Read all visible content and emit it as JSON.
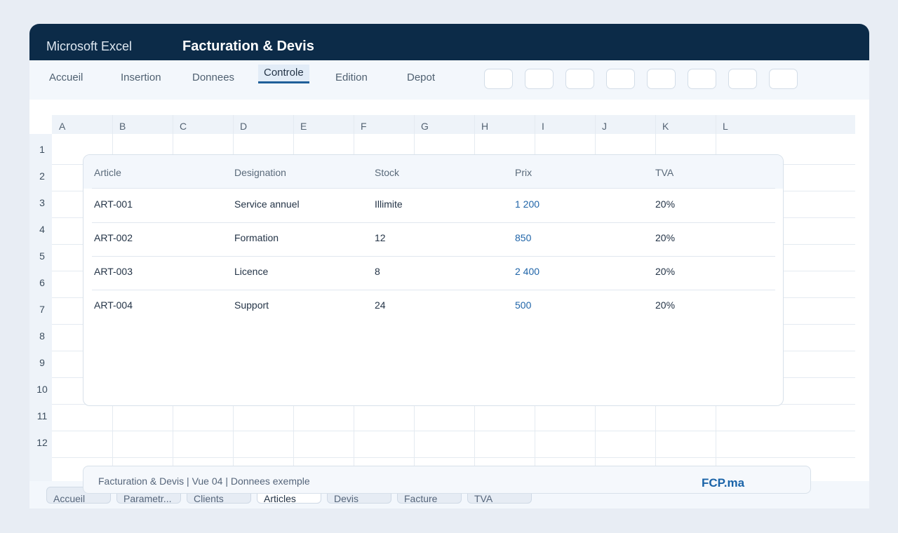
{
  "app": {
    "name": "Microsoft Excel",
    "document_title": "Facturation & Devis"
  },
  "ribbon": {
    "tabs": [
      {
        "label": "Accueil"
      },
      {
        "label": "Insertion"
      },
      {
        "label": "Donnees"
      },
      {
        "label": "Controle",
        "active": true
      },
      {
        "label": "Edition"
      },
      {
        "label": "Depot"
      }
    ],
    "button_count": 8
  },
  "grid": {
    "columns": [
      "A",
      "B",
      "C",
      "D",
      "E",
      "F",
      "G",
      "H",
      "I",
      "J",
      "K",
      "L"
    ],
    "rows": [
      "1",
      "2",
      "3",
      "4",
      "5",
      "6",
      "7",
      "8",
      "9",
      "10",
      "11",
      "12"
    ]
  },
  "table": {
    "headers": [
      "Article",
      "Designation",
      "Stock",
      "Prix",
      "TVA"
    ],
    "rows": [
      {
        "article": "ART-001",
        "designation": "Service annuel",
        "stock": "Illimite",
        "prix": "1 200",
        "tva": "20%"
      },
      {
        "article": "ART-002",
        "designation": "Formation",
        "stock": "12",
        "prix": "850",
        "tva": "20%"
      },
      {
        "article": "ART-003",
        "designation": "Licence",
        "stock": "8",
        "prix": "2 400",
        "tva": "20%"
      },
      {
        "article": "ART-004",
        "designation": "Support",
        "stock": "24",
        "prix": "500",
        "tva": "20%"
      }
    ]
  },
  "footer": {
    "text": "Facturation & Devis | Vue 04 | Donnees exemple",
    "brand": "FCP.ma"
  },
  "sheets": [
    {
      "label": "Accueil"
    },
    {
      "label": "Parametr..."
    },
    {
      "label": "Clients"
    },
    {
      "label": "Articles",
      "active": true
    },
    {
      "label": "Devis"
    },
    {
      "label": "Facture"
    },
    {
      "label": "TVA"
    }
  ],
  "colors": {
    "titlebar": "#0c2b48",
    "accent": "#1f5f99",
    "price": "#1f64a8",
    "brand": "#1a63a8"
  }
}
